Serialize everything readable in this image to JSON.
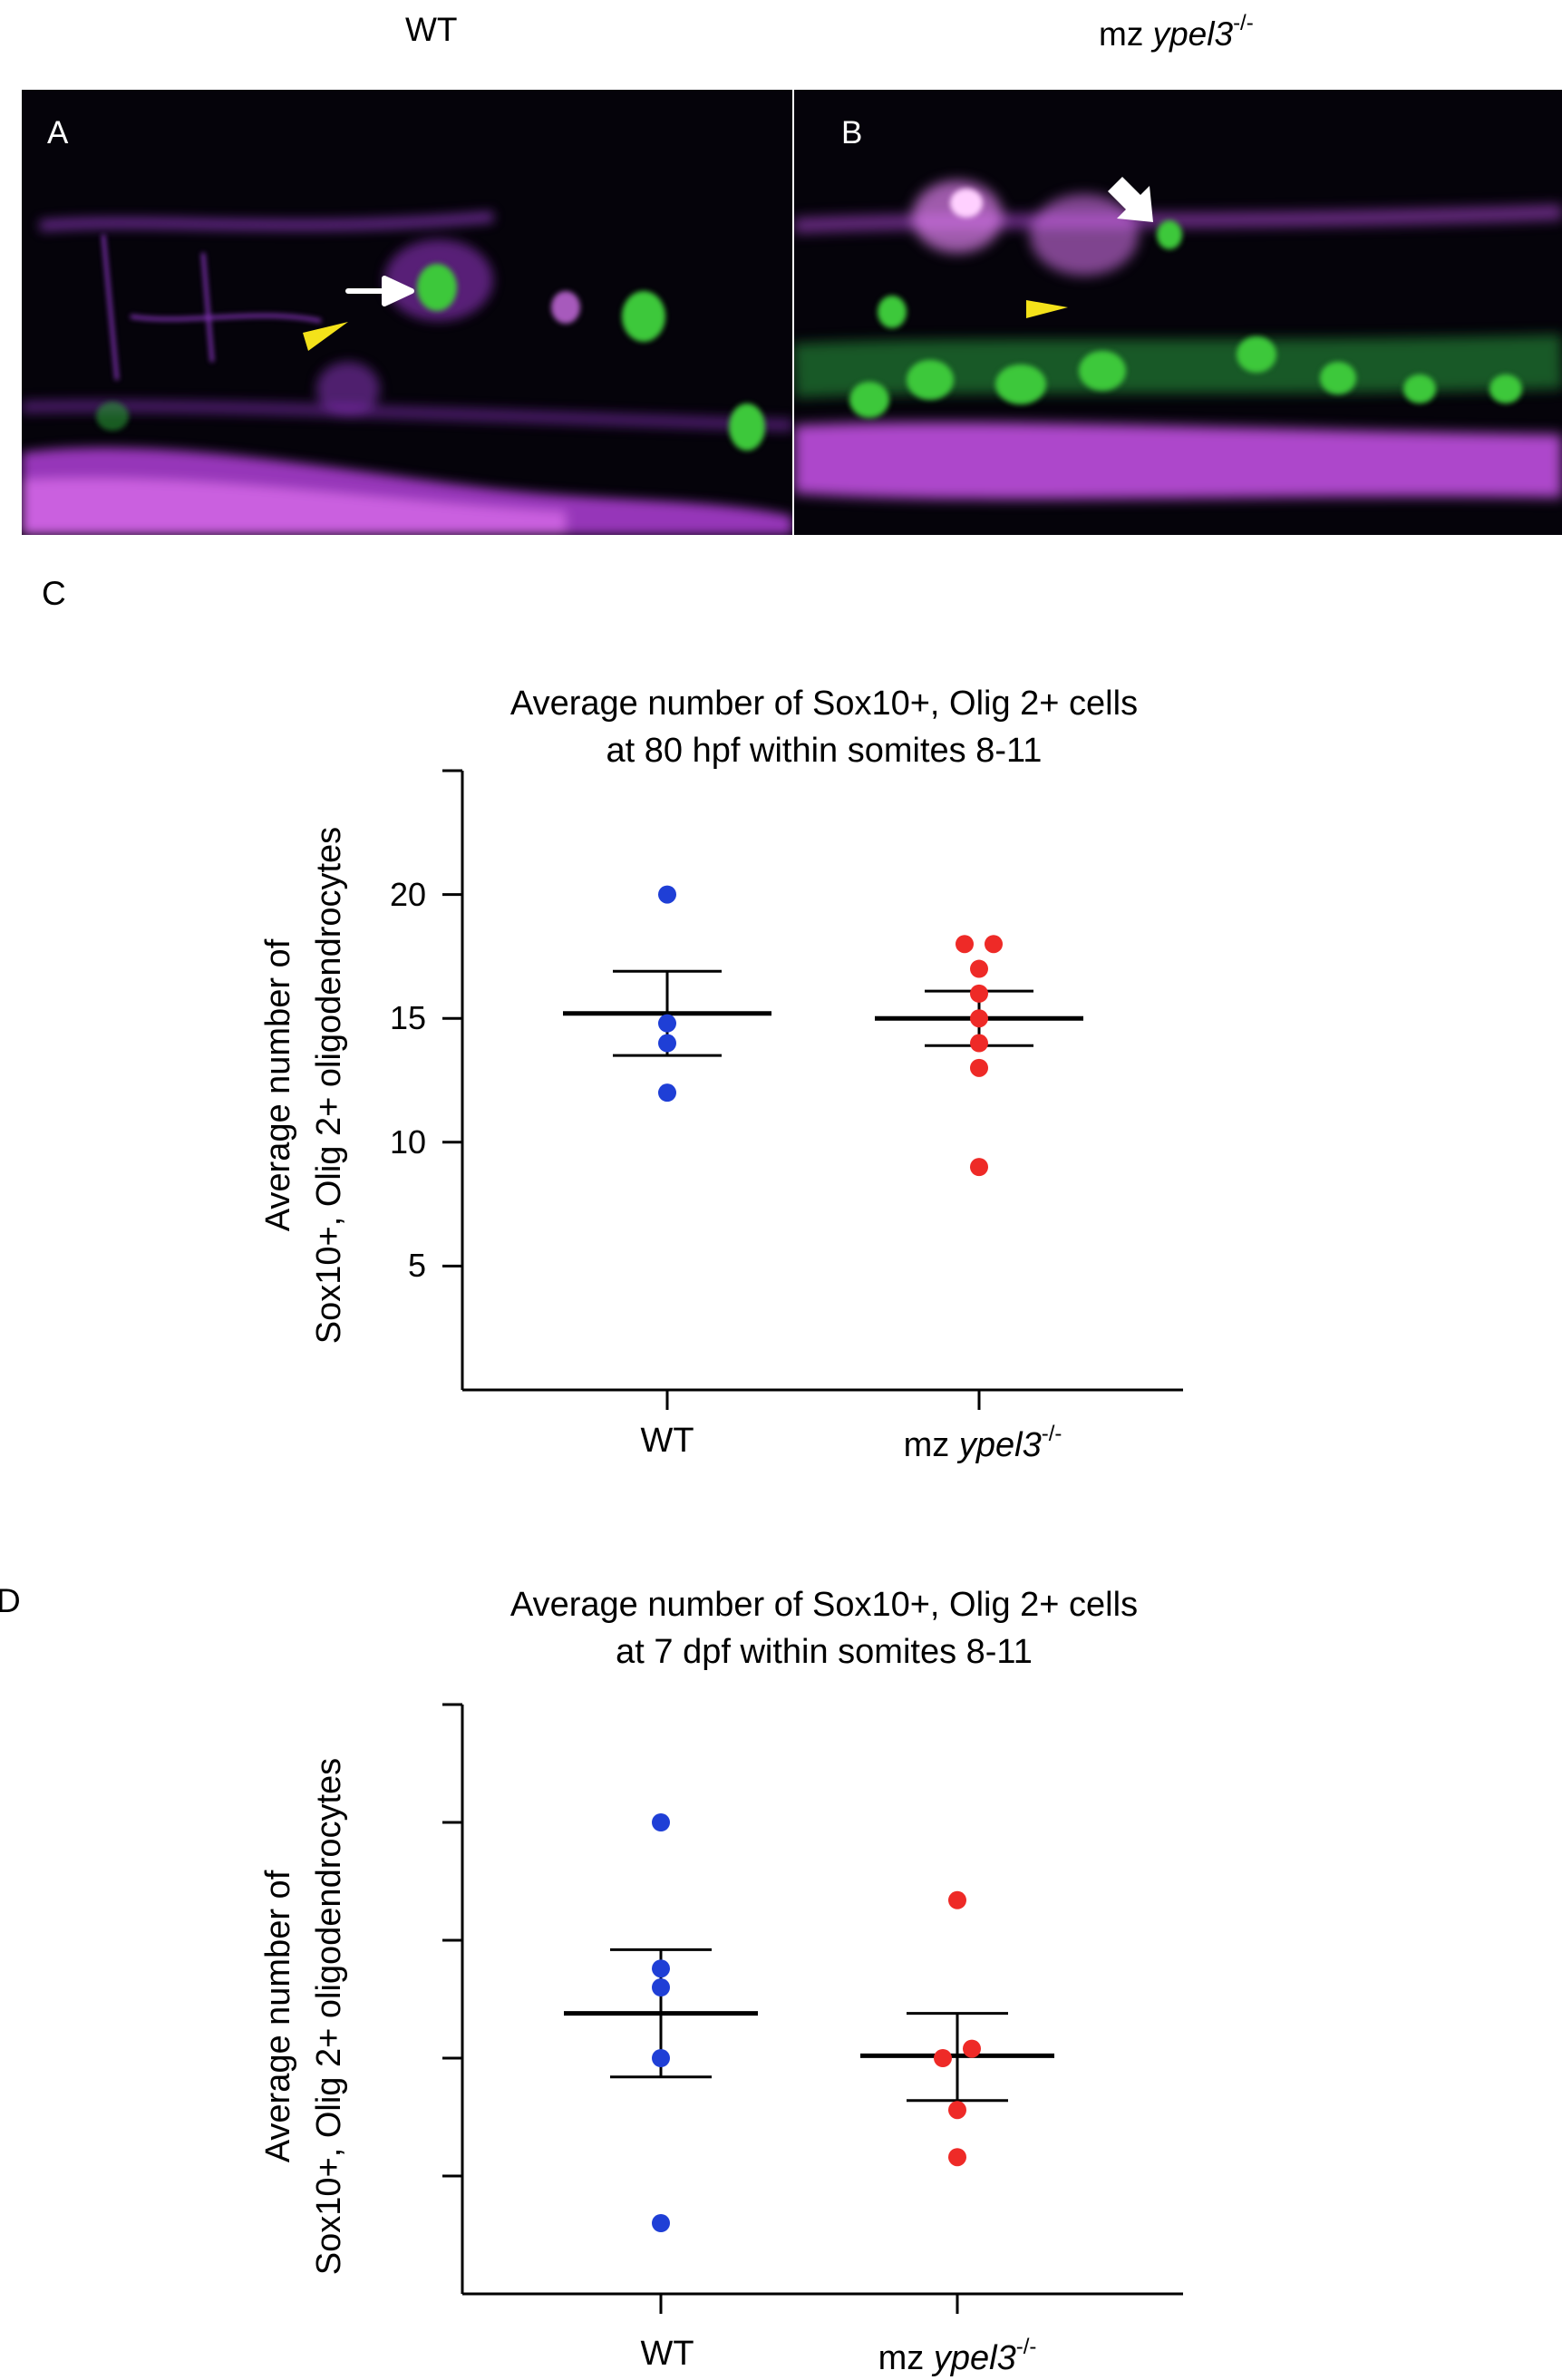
{
  "panels_header": {
    "left_title": "WT",
    "right_title_prefix": "mz ",
    "right_title_gene": "ypel3",
    "right_title_sup": "-/-"
  },
  "image_panels": {
    "A": {
      "letter": "A"
    },
    "B": {
      "letter": "B"
    }
  },
  "colors": {
    "wt_points": "#1f3fd6",
    "mutant_points": "#ee2a27",
    "magenta_stain": "#c040e0",
    "green_stain": "#3ec83a",
    "arrow": "#ffffff",
    "arrowhead": "#f4e21a"
  },
  "chart_data": [
    {
      "type": "scatter",
      "panel": "C",
      "title_line1": "Average number of Sox10+, Olig 2+ cells",
      "title_line2": "at 80 hpf within somites 8-11",
      "ylabel_line1": "Average number of",
      "ylabel_line2": "Sox10+, Olig 2+ oligodendrocytes",
      "categories": [
        {
          "label": "WT"
        },
        {
          "label_prefix": "mz ",
          "label_gene": "ypel3",
          "label_sup": "-/-"
        }
      ],
      "ylim": [
        0,
        25
      ],
      "yticks": [
        5,
        10,
        15,
        20
      ],
      "ytick_labels": [
        "5",
        "10",
        "15",
        "20"
      ],
      "series": [
        {
          "category_index": 0,
          "points": [
            {
              "x": 0,
              "y": 20
            },
            {
              "x": 0,
              "y": 14.8
            },
            {
              "x": 0,
              "y": 14
            },
            {
              "x": 0,
              "y": 12
            }
          ],
          "mean": 15.2,
          "sem_low": 13.5,
          "sem_high": 16.9
        },
        {
          "category_index": 1,
          "points": [
            {
              "x": -0.4,
              "y": 18
            },
            {
              "x": 0.4,
              "y": 18
            },
            {
              "x": 0,
              "y": 17
            },
            {
              "x": 0,
              "y": 16
            },
            {
              "x": 0,
              "y": 15
            },
            {
              "x": 0,
              "y": 14
            },
            {
              "x": 0,
              "y": 13
            },
            {
              "x": 0,
              "y": 9
            }
          ],
          "mean": 15,
          "sem_low": 13.9,
          "sem_high": 16.1
        }
      ]
    },
    {
      "type": "scatter",
      "panel": "D",
      "title_line1": "Average number of Sox10+, Olig 2+ cells",
      "title_line2": "at 7 dpf within somites 8-11",
      "ylabel_line1": "Average number of",
      "ylabel_line2": "Sox10+, Olig 2+ oligodendrocytes",
      "categories": [
        {
          "label": "WT"
        },
        {
          "label_prefix": "mz ",
          "label_gene": "ypel3",
          "label_sup": "-/-"
        }
      ],
      "ylim": [
        0,
        25
      ],
      "yticks": [
        5,
        10,
        15,
        20
      ],
      "ytick_labels": [],
      "series": [
        {
          "category_index": 0,
          "points": [
            {
              "x": 0,
              "y": 20
            },
            {
              "x": 0,
              "y": 13.8
            },
            {
              "x": 0,
              "y": 13
            },
            {
              "x": 0,
              "y": 10
            },
            {
              "x": 0,
              "y": 3
            }
          ],
          "mean": 11.9,
          "sem_low": 9.2,
          "sem_high": 14.6
        },
        {
          "category_index": 1,
          "points": [
            {
              "x": 0,
              "y": 16.7
            },
            {
              "x": -0.4,
              "y": 10
            },
            {
              "x": 0.4,
              "y": 10.4
            },
            {
              "x": 0,
              "y": 7.8
            },
            {
              "x": 0,
              "y": 5.8
            }
          ],
          "mean": 10.1,
          "sem_low": 8.2,
          "sem_high": 11.9
        }
      ]
    }
  ],
  "panel_letters": {
    "C": "C",
    "D": "D"
  }
}
